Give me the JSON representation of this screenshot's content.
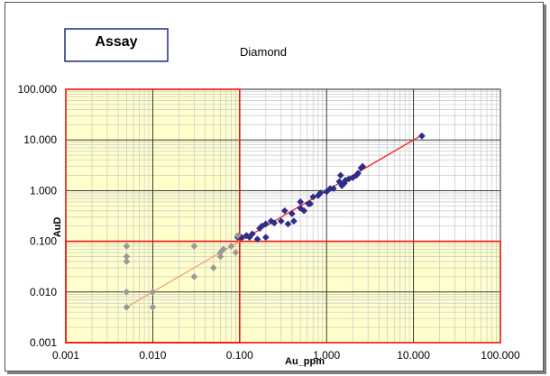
{
  "chart_data": {
    "type": "scatter",
    "title": "Diamond",
    "legend_label": "Assay",
    "legend_placement": "top-left",
    "xlabel": "Au_ppm",
    "ylabel": "AuD",
    "x_scale": "log",
    "y_scale": "log",
    "xlim": [
      0.001,
      100
    ],
    "ylim": [
      0.001,
      100
    ],
    "grid": true,
    "x_ticks": [
      "0.001",
      "0.010",
      "0.100",
      "1.000",
      "10.000",
      "100.000"
    ],
    "y_ticks": [
      "0.001",
      "0.010",
      "0.100",
      "1.000",
      "10.000",
      "100.000"
    ],
    "x_tick_values": [
      0.001,
      0.01,
      0.1,
      1,
      10,
      100
    ],
    "y_tick_values": [
      0.001,
      0.01,
      0.1,
      1,
      10,
      100
    ],
    "threshold": 0.1,
    "colors": {
      "shade": "#ffffcc",
      "threshold_lines": "#ee1111",
      "above_points": "#2e2e8a",
      "below_points": "#9a9a9a",
      "fit_above": "#ee2222",
      "fit_below": "#f4a070",
      "grid_major": "#222222",
      "grid_minor": "#c8c8c8"
    },
    "fit_line": {
      "x_start": 0.005,
      "x_end": 12.5,
      "y_start": 0.005,
      "y_end": 12.5
    },
    "series": [
      {
        "group": "above",
        "x": [
          0.095,
          0.105,
          0.13,
          0.14,
          0.16,
          0.17,
          0.2,
          0.2,
          0.23,
          0.25,
          0.3,
          0.33,
          0.4,
          0.42,
          0.5,
          0.5,
          0.55,
          0.62,
          0.7,
          0.8,
          0.85,
          1.0,
          1.1,
          1.2,
          1.4,
          1.45,
          1.6,
          1.65,
          1.8,
          2.0,
          2.2,
          2.3,
          2.5,
          2.6,
          0.12,
          0.18,
          0.36,
          0.65,
          1.5,
          12.5
        ],
        "y": [
          0.12,
          0.12,
          0.12,
          0.14,
          0.11,
          0.18,
          0.22,
          0.12,
          0.25,
          0.23,
          0.25,
          0.4,
          0.35,
          0.25,
          0.6,
          0.45,
          0.4,
          0.55,
          0.75,
          0.8,
          0.9,
          0.95,
          1.1,
          1.1,
          1.5,
          2.0,
          1.4,
          1.6,
          1.7,
          1.8,
          2.0,
          2.2,
          2.8,
          3.0,
          0.13,
          0.2,
          0.22,
          0.55,
          1.25,
          12.0
        ]
      },
      {
        "group": "below",
        "x": [
          0.005,
          0.005,
          0.005,
          0.005,
          0.005,
          0.01,
          0.01,
          0.03,
          0.03,
          0.05,
          0.06,
          0.06,
          0.065,
          0.08,
          0.09,
          0.095
        ],
        "y": [
          0.08,
          0.05,
          0.04,
          0.01,
          0.005,
          0.01,
          0.005,
          0.08,
          0.02,
          0.03,
          0.05,
          0.06,
          0.07,
          0.08,
          0.06,
          0.13
        ]
      }
    ]
  }
}
